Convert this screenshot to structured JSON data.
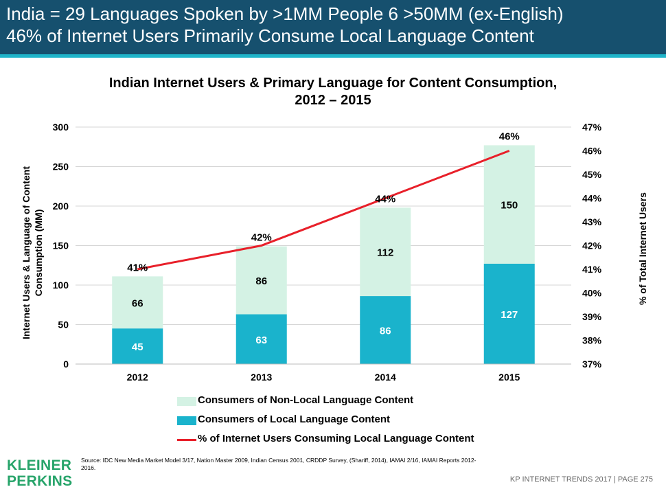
{
  "header": {
    "line1": "India = 29 Languages Spoken by >1MM People    6 >50MM (ex-English)",
    "line2": "46% of Internet Users Primarily Consume Local Language Content"
  },
  "chart_data": {
    "type": "bar",
    "title_line1": "Indian Internet Users & Primary Language for Content Consumption,",
    "title_line2": "2012 – 2015",
    "categories": [
      "2012",
      "2013",
      "2014",
      "2015"
    ],
    "stacked": true,
    "series": [
      {
        "name": "Consumers of Local Language Content",
        "values": [
          45,
          63,
          86,
          127
        ],
        "color": "#1ab3cc"
      },
      {
        "name": "Consumers of Non-Local Language Content",
        "values": [
          66,
          86,
          112,
          150
        ],
        "color": "#d4f2e4"
      }
    ],
    "line_series": {
      "name": "% of Internet Users Consuming Local Language Content",
      "values": [
        41,
        42,
        44,
        46
      ],
      "point_labels": [
        "41%",
        "42%",
        "44%",
        "46%"
      ],
      "color": "#e8202a",
      "axis": "right"
    },
    "ylabel": "Internet Users & Language of Content Consumption (MM)",
    "ylabel_line1": "Internet Users & Language of Content",
    "ylabel_line2": "Consumption (MM)",
    "y2label": "% of Total Internet Users",
    "ylim": [
      0,
      300
    ],
    "yticks": [
      "0",
      "50",
      "100",
      "150",
      "200",
      "250",
      "300"
    ],
    "y2lim": [
      37,
      47
    ],
    "y2ticks": [
      "37%",
      "38%",
      "39%",
      "40%",
      "41%",
      "42%",
      "43%",
      "44%",
      "45%",
      "46%",
      "47%"
    ],
    "grid": true,
    "legend_position": "bottom"
  },
  "legend": [
    {
      "label": "Consumers of Non-Local Language Content",
      "kind": "swatch",
      "color": "#d4f2e4"
    },
    {
      "label": "Consumers of Local Language Content",
      "kind": "swatch",
      "color": "#1ab3cc"
    },
    {
      "label": "% of Internet Users Consuming Local Language Content",
      "kind": "line",
      "color": "#e8202a"
    }
  ],
  "footer": {
    "logo_line1": "KLEINER",
    "logo_line2": "PERKINS",
    "source": "Source: IDC New Media Market Model 3/17, Nation Master 2009, Indian Census 2001, CRDDP Survey, (Shariff, 2014), IAMAI 2/16,  IAMAI Reports 2012-2016.",
    "page": "KP INTERNET TRENDS 2017   |   PAGE 275"
  }
}
